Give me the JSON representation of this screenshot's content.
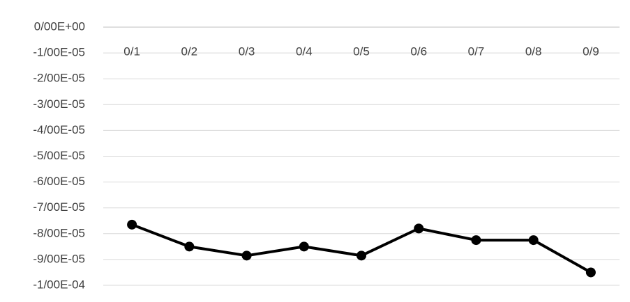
{
  "chart_data": {
    "type": "line",
    "categories": [
      "0/1",
      "0/2",
      "0/3",
      "0/4",
      "0/5",
      "0/6",
      "0/7",
      "0/8",
      "0/9"
    ],
    "series": [
      {
        "color": "#000000",
        "values": [
          -7.65e-05,
          -8.5e-05,
          -8.85e-05,
          -8.5e-05,
          -8.85e-05,
          -7.8e-05,
          -8.25e-05,
          -8.25e-05,
          -9.5e-05
        ]
      }
    ],
    "ylim": [
      -0.0001,
      0
    ],
    "yticks": [
      {
        "value": 0,
        "label": "0/00E+00"
      },
      {
        "value": -1e-05,
        "label": "-1/00E-05"
      },
      {
        "value": -2e-05,
        "label": "-2/00E-05"
      },
      {
        "value": -3e-05,
        "label": "-3/00E-05"
      },
      {
        "value": -4e-05,
        "label": "-4/00E-05"
      },
      {
        "value": -5e-05,
        "label": "-5/00E-05"
      },
      {
        "value": -6e-05,
        "label": "-6/00E-05"
      },
      {
        "value": -7e-05,
        "label": "-7/00E-05"
      },
      {
        "value": -8e-05,
        "label": "-8/00E-05"
      },
      {
        "value": -9e-05,
        "label": "-9/00E-05"
      },
      {
        "value": -0.0001,
        "label": "-1/00E-04"
      }
    ],
    "grid": true
  }
}
